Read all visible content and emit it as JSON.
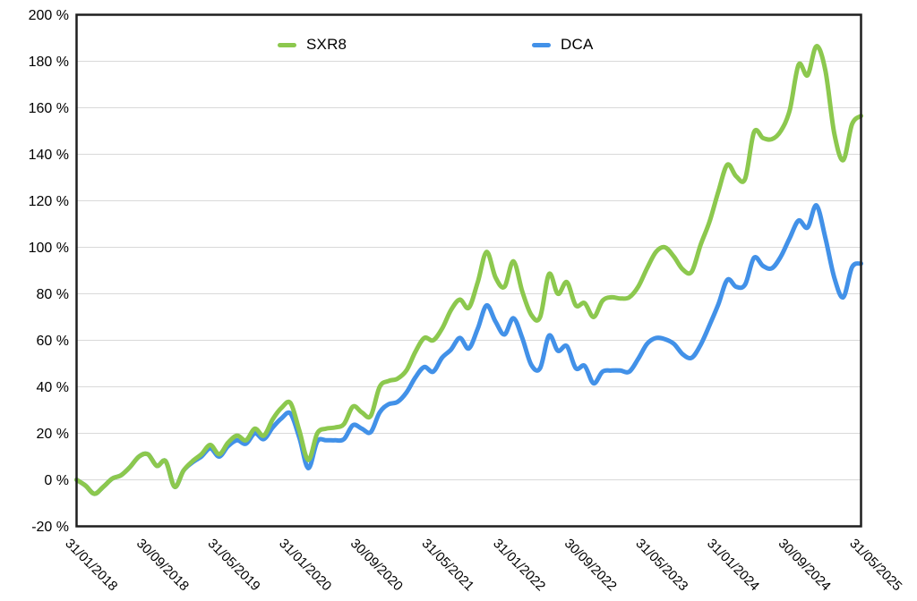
{
  "chart_data": {
    "type": "line",
    "title": "",
    "xlabel": "",
    "ylabel": "",
    "ylim": [
      -20,
      200
    ],
    "ytick_step": 20,
    "y_tick_labels": [
      "200 %",
      "180 %",
      "160 %",
      "140 %",
      "120 %",
      "100 %",
      "80 %",
      "60 %",
      "40 %",
      "20 %",
      "0 %",
      "-20 %"
    ],
    "x_tick_every": 8,
    "x_tick_labels": [
      "31/01/2018",
      "30/09/2018",
      "31/05/2019",
      "31/01/2020",
      "30/09/2020",
      "31/05/2021",
      "31/01/2022",
      "30/09/2022",
      "31/05/2023",
      "31/01/2024",
      "30/09/2024",
      "31/05/2025"
    ],
    "grid": "horizontal",
    "legend_position": "top-inside",
    "frame_color": "#1f1f1f",
    "grid_color": "#d9d9d9",
    "dates": [
      "31/01/2018",
      "28/02/2018",
      "31/03/2018",
      "30/04/2018",
      "31/05/2018",
      "30/06/2018",
      "31/07/2018",
      "31/08/2018",
      "30/09/2018",
      "31/10/2018",
      "30/11/2018",
      "31/12/2018",
      "31/01/2019",
      "28/02/2019",
      "31/03/2019",
      "30/04/2019",
      "31/05/2019",
      "30/06/2019",
      "31/07/2019",
      "31/08/2019",
      "30/09/2019",
      "31/10/2019",
      "30/11/2019",
      "31/12/2019",
      "31/01/2020",
      "29/02/2020",
      "31/03/2020",
      "30/04/2020",
      "31/05/2020",
      "30/06/2020",
      "31/07/2020",
      "31/08/2020",
      "30/09/2020",
      "31/10/2020",
      "30/11/2020",
      "31/12/2020",
      "31/01/2021",
      "28/02/2021",
      "31/03/2021",
      "30/04/2021",
      "31/05/2021",
      "30/06/2021",
      "31/07/2021",
      "31/08/2021",
      "30/09/2021",
      "31/10/2021",
      "30/11/2021",
      "31/12/2021",
      "31/01/2022",
      "28/02/2022",
      "31/03/2022",
      "30/04/2022",
      "31/05/2022",
      "30/06/2022",
      "31/07/2022",
      "31/08/2022",
      "30/09/2022",
      "31/10/2022",
      "30/11/2022",
      "31/12/2022",
      "31/01/2023",
      "28/02/2023",
      "31/03/2023",
      "30/04/2023",
      "31/05/2023",
      "30/06/2023",
      "31/07/2023",
      "31/08/2023",
      "30/09/2023",
      "31/10/2023",
      "30/11/2023",
      "31/12/2023",
      "31/01/2024",
      "29/02/2024",
      "31/03/2024",
      "30/04/2024",
      "31/05/2024",
      "30/06/2024",
      "31/07/2024",
      "31/08/2024",
      "30/09/2024",
      "31/10/2024",
      "30/11/2024",
      "31/12/2024",
      "31/01/2025",
      "28/02/2025",
      "31/03/2025",
      "30/04/2025",
      "31/05/2025"
    ],
    "series": [
      {
        "name": "SXR8",
        "color": "#8cc84e",
        "values": [
          0,
          -2.5,
          -6,
          -3,
          0.5,
          2,
          5.5,
          10,
          11,
          6,
          8,
          -3,
          4,
          8,
          11,
          15,
          11,
          16,
          19,
          17,
          22,
          19,
          26,
          31,
          33,
          21,
          8.5,
          20,
          22,
          22.5,
          24,
          31.5,
          29,
          27.5,
          40,
          42.5,
          43.5,
          47,
          55,
          61,
          60,
          65,
          73,
          77.5,
          74,
          85,
          98,
          87,
          83,
          94,
          81,
          71,
          70,
          88.5,
          80,
          85,
          75,
          76,
          70,
          77,
          78.5,
          78,
          78.5,
          83,
          91,
          98,
          100,
          96,
          90.5,
          89.5,
          101,
          111,
          124,
          135.5,
          130.5,
          129.5,
          149.5,
          147,
          146.5,
          150,
          159,
          178.5,
          174,
          186.5,
          176,
          149,
          137.5,
          153,
          156.5
        ]
      },
      {
        "name": "DCA",
        "color": "#4291e8",
        "values": [
          0,
          -2.5,
          -6,
          -3,
          0.5,
          2,
          5.5,
          10,
          11,
          6,
          8,
          -3,
          4,
          7.5,
          10,
          13.5,
          10,
          14.5,
          17,
          15.5,
          20,
          17.5,
          22.5,
          26.5,
          28.5,
          18,
          5,
          16.5,
          17,
          17,
          17.5,
          23.5,
          22,
          20.5,
          29,
          32.5,
          33.5,
          37.5,
          44,
          48.5,
          46.5,
          52.5,
          56,
          61,
          56.5,
          65,
          75,
          68,
          62.5,
          69.5,
          61,
          49.5,
          48,
          62,
          55.5,
          57.5,
          48,
          49,
          41.5,
          46.5,
          47,
          47,
          46.5,
          52,
          58.5,
          61,
          60.5,
          58.5,
          54,
          52.5,
          58,
          66.5,
          75.5,
          86,
          83,
          84,
          95.5,
          92,
          91,
          96,
          104,
          111.5,
          108.5,
          118,
          104,
          87,
          78.5,
          91.5,
          93
        ]
      }
    ]
  },
  "legend": {
    "items": [
      {
        "label": "SXR8"
      },
      {
        "label": "DCA"
      }
    ]
  }
}
